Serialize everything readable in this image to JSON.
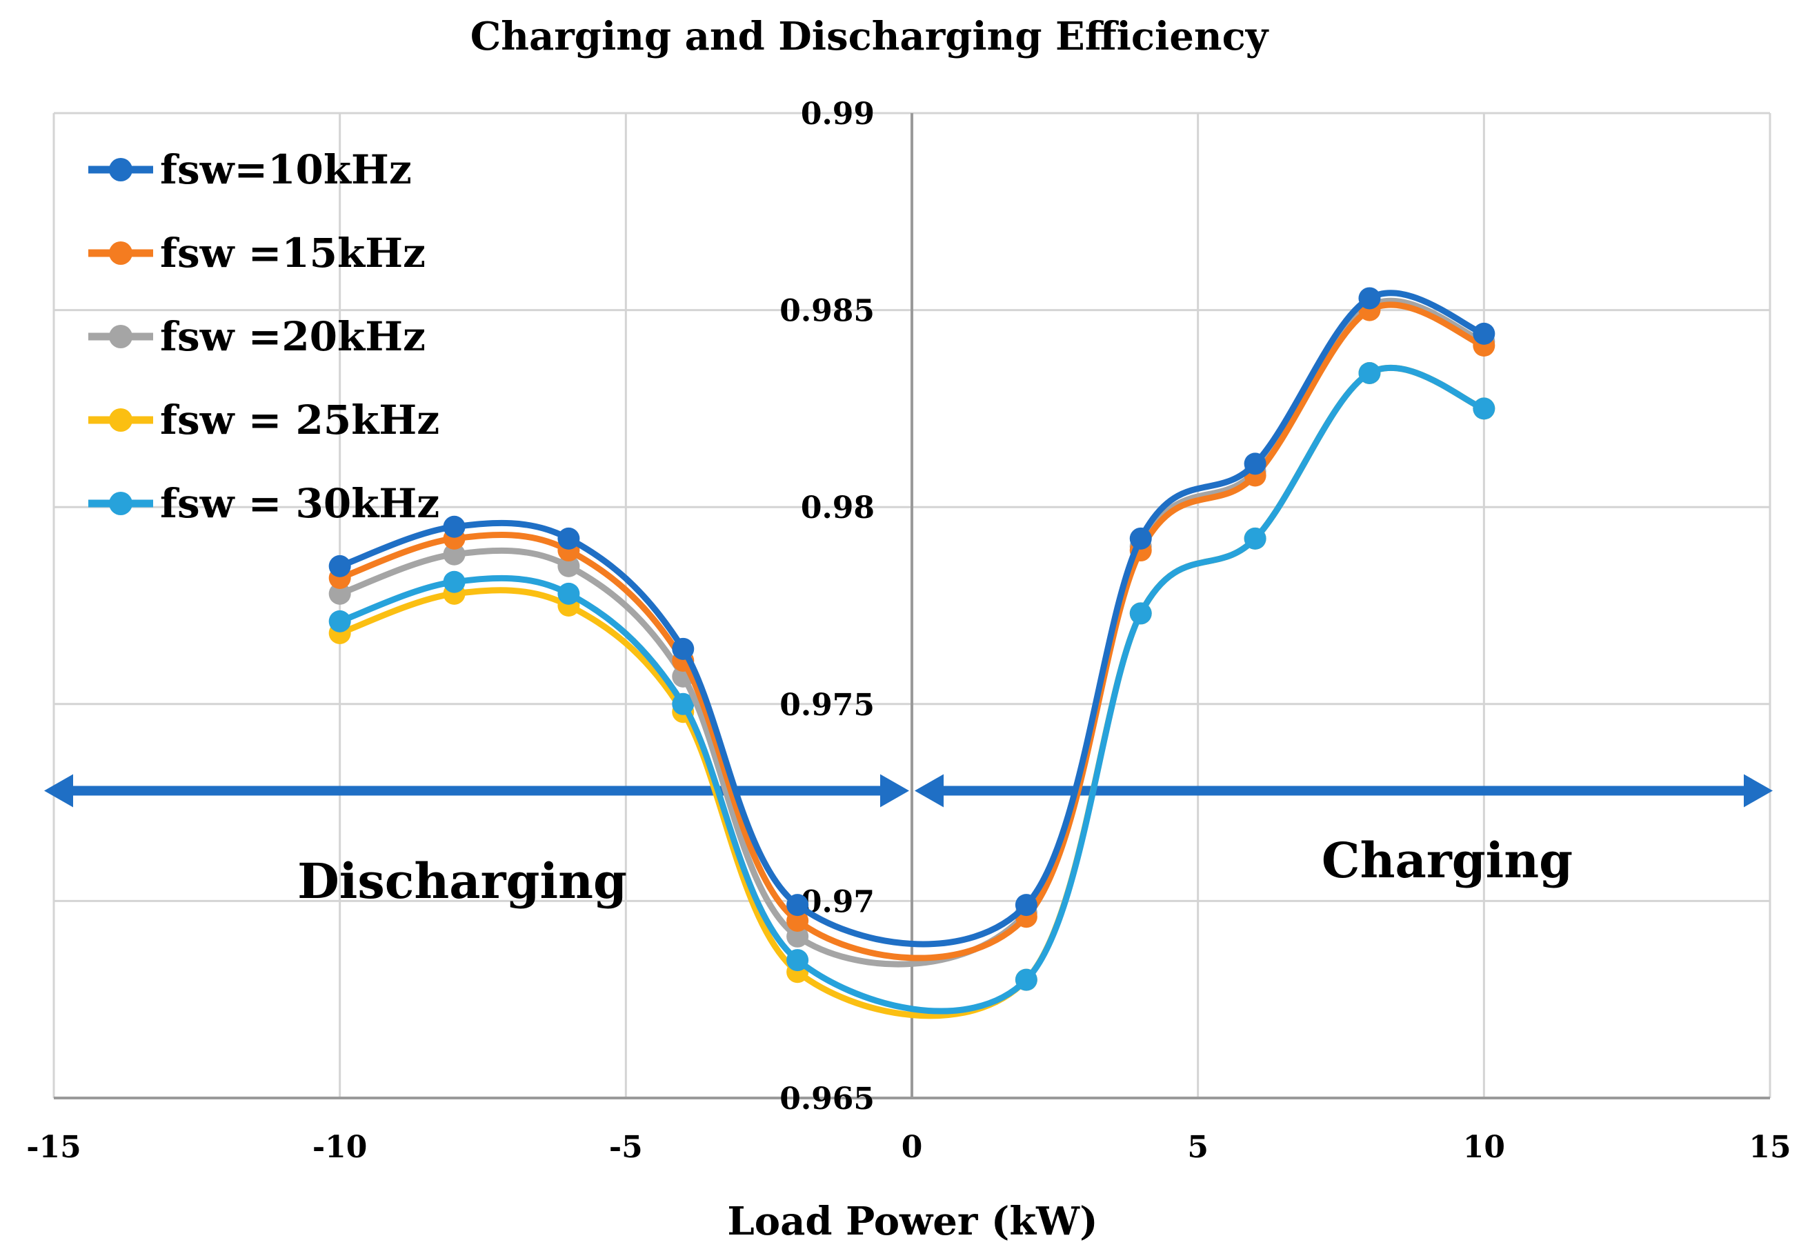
{
  "chart_data": {
    "type": "line",
    "title": "Charging and Discharging Efficiency",
    "xlabel": "Load Power (kW)",
    "ylabel": "",
    "xlim": [
      -15,
      15
    ],
    "ylim": [
      0.965,
      0.99
    ],
    "x_ticks": [
      -15,
      -10,
      -5,
      0,
      5,
      10,
      15
    ],
    "x_tick_labels": [
      "-15",
      "-10",
      "-5",
      "0",
      "5",
      "10",
      "15"
    ],
    "y_ticks": [
      0.965,
      0.97,
      0.975,
      0.98,
      0.985,
      0.99
    ],
    "y_tick_labels": [
      "0.965",
      "0.97",
      "0.975",
      "0.98",
      "0.985",
      "0.99"
    ],
    "grid": true,
    "legend_position": "top-left",
    "x": [
      -10,
      -8,
      -6,
      -4,
      -2,
      2,
      4,
      6,
      8,
      10
    ],
    "series": [
      {
        "name": "fsw=10kHz",
        "color": "#1f6fc5",
        "values": [
          0.9785,
          0.9795,
          0.9792,
          0.9764,
          0.9699,
          0.9699,
          0.9792,
          0.9811,
          0.9853,
          0.9844
        ]
      },
      {
        "name": "fsw =15kHz",
        "color": "#f47c20",
        "values": [
          0.9782,
          0.9792,
          0.9789,
          0.9761,
          0.9695,
          0.9696,
          0.9789,
          0.9808,
          0.985,
          0.9841
        ]
      },
      {
        "name": "fsw =20kHz",
        "color": "#a5a5a5",
        "values": [
          0.9778,
          0.9788,
          0.9785,
          0.9757,
          0.9691,
          0.9697,
          0.979,
          0.9809,
          0.9851,
          0.9842
        ]
      },
      {
        "name": "fsw = 25kHz",
        "color": "#fbbf12",
        "values": [
          0.9768,
          0.9778,
          0.9775,
          0.9748,
          0.9682,
          0.968,
          0.9773,
          0.9792,
          0.9834,
          0.9825
        ]
      },
      {
        "name": "fsw = 30kHz",
        "color": "#27a2db",
        "values": [
          0.9771,
          0.9781,
          0.9778,
          0.975,
          0.9685,
          0.968,
          0.9773,
          0.9792,
          0.9834,
          0.9825
        ]
      }
    ],
    "annotations": {
      "discharging": "Discharging",
      "charging": "Charging",
      "arrow_y": 0.9728
    }
  }
}
